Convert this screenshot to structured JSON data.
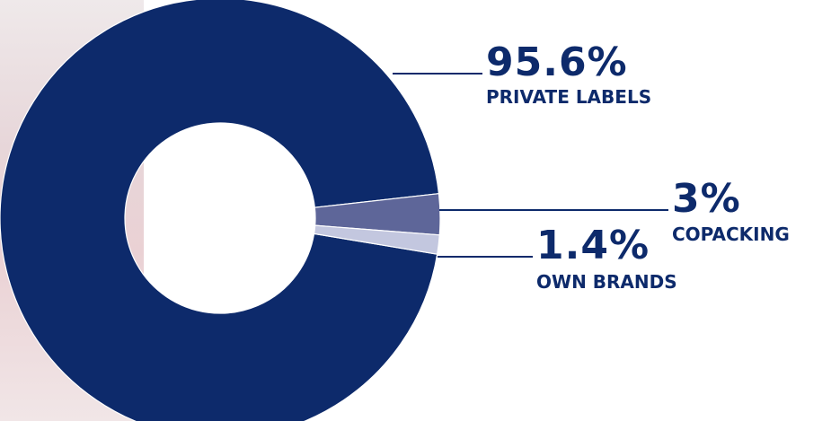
{
  "chart_data": {
    "type": "pie",
    "donut": true,
    "categories": [
      "PRIVATE LABELS",
      "COPACKING",
      "OWN BRANDS"
    ],
    "values": [
      95.6,
      3,
      1.4
    ],
    "value_labels": [
      "95.6%",
      "3%",
      "1.4%"
    ],
    "colors": [
      "#0d2a6b",
      "#5e6699",
      "#c3c7df"
    ],
    "legend": "callouts"
  }
}
